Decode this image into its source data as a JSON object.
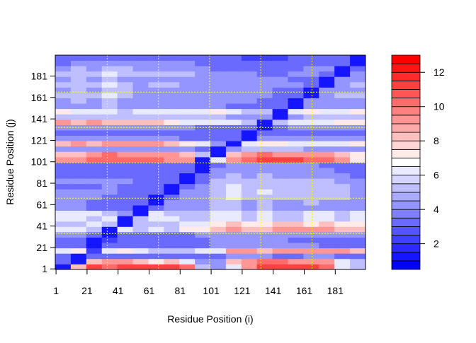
{
  "chart_data": {
    "type": "heatmap",
    "xlabel": "Residue Position (i)",
    "ylabel": "Residue Position (j)",
    "xlim": [
      1,
      200
    ],
    "ylim": [
      1,
      200
    ],
    "x_ticks": [
      "1",
      "21",
      "41",
      "61",
      "81",
      "101",
      "121",
      "141",
      "161",
      "181"
    ],
    "y_ticks": [
      "1",
      "21",
      "41",
      "61",
      "81",
      "101",
      "121",
      "141",
      "161",
      "181"
    ],
    "cell_width_residues_i": 10,
    "cell_height_residues_j": 5,
    "reference_lines": {
      "positions": [
        34,
        67,
        100,
        133,
        166
      ],
      "color": "#FFFF00",
      "style": "dotted"
    },
    "colorbar": {
      "breaks_min": 0.5,
      "breaks_max": 13,
      "breaks_step": 0.5,
      "ticks": [
        "2",
        "4",
        "6",
        "8",
        "10",
        "12"
      ],
      "low_color": "#0000FF",
      "mid_color": "#FFFFFF",
      "high_color": "#FF0000"
    },
    "matrix_rows_j_ascending": [
      [
        1,
        8,
        11,
        10,
        11,
        11,
        11,
        11,
        10,
        5,
        4,
        6,
        9,
        11,
        11,
        11,
        11,
        10,
        6,
        5
      ],
      [
        3,
        1,
        8,
        9,
        9,
        8,
        7,
        8,
        6,
        4,
        4,
        8,
        9,
        10,
        10,
        9,
        9,
        9,
        6,
        5
      ],
      [
        3,
        1,
        3,
        3,
        3,
        3,
        3,
        3,
        3,
        3,
        3,
        4,
        4,
        4,
        3,
        3,
        4,
        4,
        3,
        3
      ],
      [
        6,
        7,
        2,
        6,
        7,
        6,
        5,
        5,
        5,
        6,
        6,
        9,
        9,
        8,
        9,
        9,
        9,
        9,
        9,
        8
      ],
      [
        3,
        3,
        1,
        3,
        3,
        3,
        3,
        3,
        3,
        3,
        4,
        4,
        4,
        4,
        4,
        4,
        4,
        3,
        3,
        3
      ],
      [
        3,
        3,
        1,
        2,
        3,
        3,
        3,
        3,
        3,
        3,
        4,
        4,
        4,
        4,
        4,
        3,
        3,
        3,
        3,
        3
      ],
      [
        4,
        4,
        3,
        1,
        3,
        3,
        3,
        3,
        3,
        4,
        4,
        4,
        4,
        4,
        4,
        4,
        4,
        4,
        4,
        4
      ],
      [
        6,
        6,
        5,
        1,
        6,
        5,
        6,
        5,
        7,
        7,
        8,
        9,
        8,
        8,
        9,
        9,
        9,
        9,
        8,
        8
      ],
      [
        5,
        5,
        6,
        5,
        1,
        5,
        5,
        5,
        6,
        6,
        7,
        8,
        7,
        7,
        8,
        8,
        7,
        8,
        7,
        7
      ],
      [
        6,
        6,
        5,
        6,
        1,
        5,
        6,
        6,
        5,
        5,
        6,
        6,
        5,
        6,
        5,
        5,
        6,
        6,
        5,
        6
      ],
      [
        6,
        6,
        6,
        5,
        4,
        1,
        6,
        5,
        5,
        5,
        6,
        6,
        5,
        6,
        5,
        5,
        6,
        6,
        5,
        6
      ],
      [
        4,
        4,
        3,
        3,
        3,
        1,
        3,
        4,
        4,
        4,
        5,
        5,
        4,
        5,
        4,
        4,
        4,
        4,
        4,
        4
      ],
      [
        4,
        4,
        3,
        3,
        3,
        3,
        1,
        4,
        4,
        4,
        5,
        5,
        4,
        5,
        4,
        4,
        5,
        4,
        4,
        4
      ],
      [
        4,
        4,
        4,
        3,
        3,
        3,
        1,
        3,
        4,
        4,
        5,
        6,
        5,
        5,
        5,
        5,
        5,
        5,
        5,
        4
      ],
      [
        4,
        4,
        4,
        4,
        3,
        3,
        3,
        1,
        4,
        4,
        5,
        6,
        5,
        6,
        5,
        5,
        5,
        5,
        5,
        4
      ],
      [
        3,
        3,
        3,
        4,
        3,
        3,
        3,
        1,
        3,
        4,
        5,
        6,
        5,
        5,
        5,
        5,
        5,
        5,
        5,
        4
      ],
      [
        4,
        4,
        4,
        4,
        4,
        3,
        3,
        3,
        1,
        3,
        5,
        5,
        5,
        5,
        5,
        5,
        5,
        5,
        4,
        4
      ],
      [
        3,
        3,
        3,
        3,
        3,
        3,
        3,
        3,
        1,
        3,
        4,
        5,
        4,
        5,
        4,
        4,
        4,
        4,
        4,
        3
      ],
      [
        3,
        3,
        3,
        3,
        3,
        3,
        3,
        3,
        3,
        1,
        4,
        4,
        4,
        4,
        4,
        4,
        4,
        4,
        3,
        3
      ],
      [
        3,
        3,
        3,
        3,
        3,
        3,
        3,
        3,
        3,
        1,
        3,
        4,
        4,
        4,
        4,
        4,
        4,
        3,
        3,
        3
      ],
      [
        9,
        9,
        10,
        10,
        10,
        10,
        10,
        9,
        9,
        1,
        6,
        9,
        10,
        11,
        11,
        11,
        10,
        10,
        9,
        7
      ],
      [
        8,
        8,
        9,
        10,
        9,
        9,
        9,
        9,
        8,
        5,
        1,
        8,
        9,
        10,
        9,
        9,
        9,
        9,
        8,
        7
      ],
      [
        4,
        4,
        4,
        4,
        4,
        4,
        4,
        4,
        4,
        3,
        1,
        4,
        5,
        5,
        5,
        5,
        4,
        4,
        4,
        4
      ],
      [
        8,
        9,
        8,
        9,
        9,
        9,
        9,
        8,
        7,
        6,
        4,
        1,
        6,
        7,
        7,
        6,
        6,
        6,
        6,
        7
      ],
      [
        4,
        4,
        4,
        4,
        4,
        4,
        4,
        4,
        3,
        3,
        3,
        3,
        1,
        4,
        4,
        4,
        4,
        4,
        4,
        4
      ],
      [
        3,
        3,
        3,
        3,
        3,
        3,
        3,
        3,
        3,
        3,
        3,
        3,
        1,
        3,
        3,
        3,
        3,
        3,
        3,
        3
      ],
      [
        4,
        4,
        4,
        4,
        4,
        4,
        4,
        4,
        4,
        3,
        3,
        3,
        3,
        1,
        3,
        4,
        4,
        4,
        4,
        4
      ],
      [
        9,
        8,
        9,
        8,
        8,
        8,
        8,
        7,
        6,
        6,
        6,
        6,
        5,
        1,
        5,
        6,
        6,
        6,
        7,
        7
      ],
      [
        5,
        5,
        5,
        5,
        5,
        5,
        5,
        5,
        5,
        5,
        5,
        4,
        4,
        4,
        1,
        4,
        5,
        5,
        5,
        5
      ],
      [
        7,
        6,
        6,
        6,
        5,
        6,
        6,
        6,
        6,
        6,
        7,
        6,
        5,
        5,
        1,
        6,
        7,
        6,
        6,
        7
      ],
      [
        4,
        4,
        4,
        5,
        4,
        4,
        4,
        4,
        4,
        4,
        4,
        3,
        3,
        3,
        3,
        1,
        4,
        4,
        4,
        4
      ],
      [
        4,
        5,
        4,
        5,
        4,
        4,
        4,
        4,
        4,
        4,
        4,
        4,
        4,
        3,
        3,
        1,
        4,
        4,
        4,
        4
      ],
      [
        5,
        5,
        5,
        6,
        5,
        4,
        4,
        4,
        4,
        4,
        4,
        4,
        4,
        4,
        3,
        3,
        1,
        4,
        5,
        5
      ],
      [
        4,
        5,
        4,
        5,
        5,
        4,
        4,
        4,
        4,
        4,
        4,
        4,
        4,
        4,
        3,
        3,
        1,
        4,
        4,
        4
      ],
      [
        5,
        5,
        5,
        6,
        5,
        4,
        5,
        5,
        4,
        4,
        4,
        4,
        4,
        4,
        4,
        4,
        3,
        1,
        4,
        5
      ],
      [
        4,
        5,
        4,
        5,
        4,
        4,
        4,
        4,
        4,
        4,
        4,
        4,
        4,
        4,
        4,
        3,
        3,
        1,
        4,
        4
      ],
      [
        5,
        5,
        5,
        6,
        5,
        5,
        5,
        5,
        5,
        4,
        4,
        4,
        4,
        3,
        3,
        4,
        4,
        3,
        1,
        4
      ],
      [
        4,
        5,
        4,
        5,
        5,
        4,
        4,
        4,
        4,
        4,
        3,
        3,
        3,
        3,
        3,
        3,
        4,
        4,
        1,
        3
      ],
      [
        3,
        4,
        4,
        4,
        4,
        4,
        4,
        4,
        4,
        3,
        3,
        3,
        3,
        3,
        3,
        3,
        3,
        3,
        3,
        1
      ],
      [
        3,
        3,
        3,
        3,
        3,
        3,
        3,
        3,
        3,
        3,
        3,
        3,
        2,
        2,
        2,
        3,
        3,
        3,
        3,
        1
      ]
    ]
  }
}
